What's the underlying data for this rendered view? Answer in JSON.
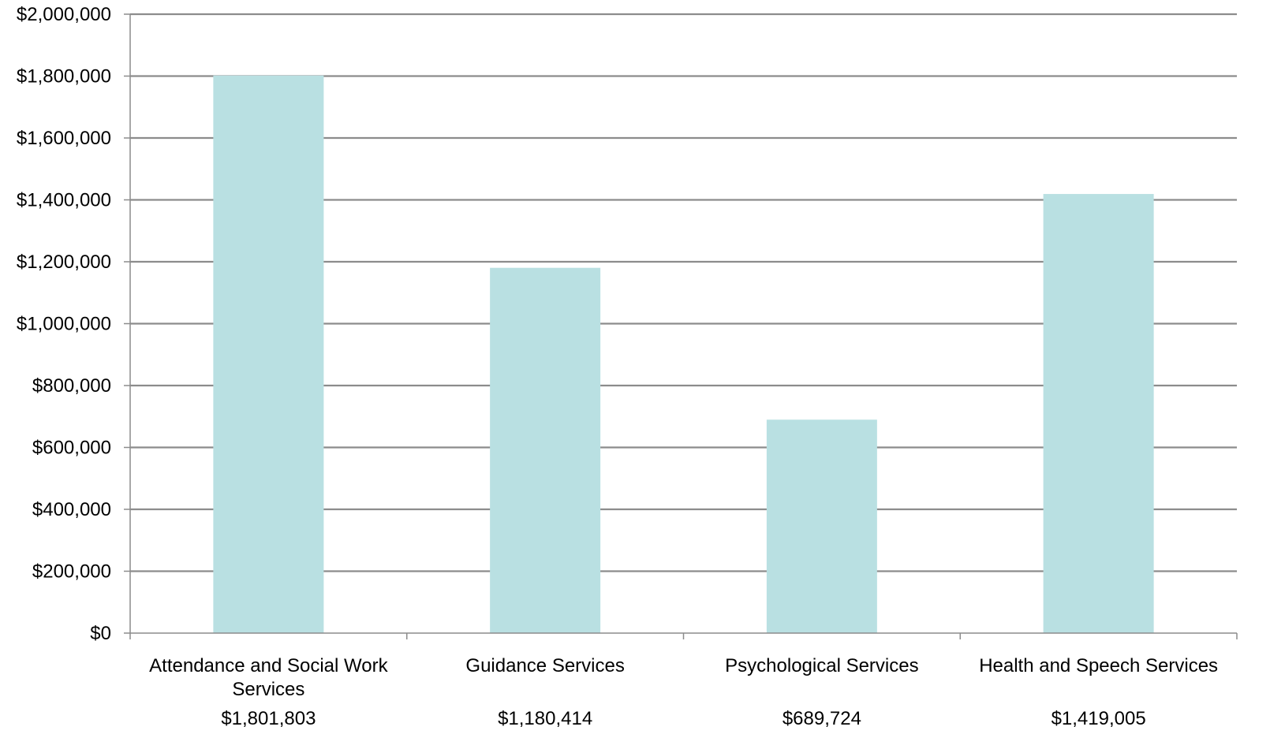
{
  "chart_data": {
    "type": "bar",
    "categories": [
      [
        "Attendance and Social Work",
        "Services"
      ],
      [
        "Guidance Services"
      ],
      [
        "Psychological Services"
      ],
      [
        "Health and Speech Services"
      ]
    ],
    "values": [
      1801803,
      1180414,
      689724,
      1419005
    ],
    "value_labels": [
      "$1,801,803",
      "$1,180,414",
      "$689,724",
      "$1,419,005"
    ],
    "ylim": [
      0,
      2000000
    ],
    "yticks": [
      {
        "value": 0,
        "label": "$0"
      },
      {
        "value": 200000,
        "label": "$200,000"
      },
      {
        "value": 400000,
        "label": "$400,000"
      },
      {
        "value": 600000,
        "label": "$600,000"
      },
      {
        "value": 800000,
        "label": "$800,000"
      },
      {
        "value": 1000000,
        "label": "$1,000,000"
      },
      {
        "value": 1200000,
        "label": "$1,200,000"
      },
      {
        "value": 1400000,
        "label": "$1,400,000"
      },
      {
        "value": 1600000,
        "label": "$1,600,000"
      },
      {
        "value": 1800000,
        "label": "$1,800,000"
      },
      {
        "value": 2000000,
        "label": "$2,000,000"
      }
    ],
    "title": "",
    "xlabel": "",
    "ylabel": "",
    "grid": true,
    "legend": "none",
    "colors": {
      "bar": "#b9e0e2",
      "grid": "#8c8c8c",
      "axis": "#8c8c8c",
      "text": "#000000"
    }
  }
}
